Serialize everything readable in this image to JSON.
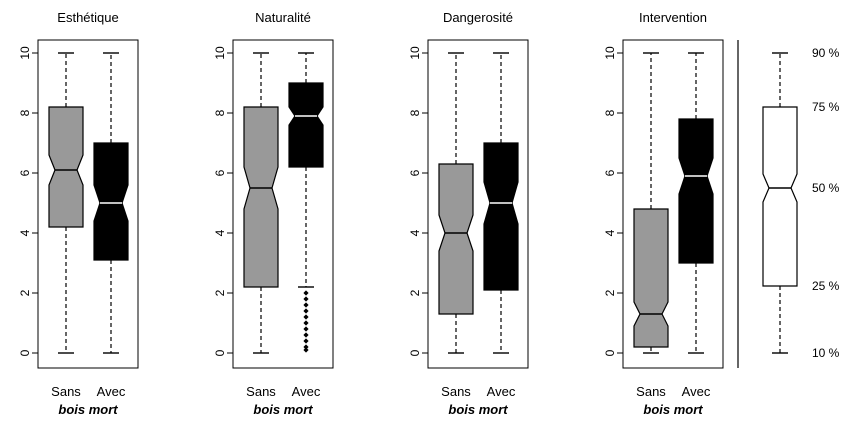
{
  "chart_data": {
    "type": "boxplot",
    "ylim": [
      0,
      10
    ],
    "yticks": [
      0,
      2,
      4,
      6,
      8,
      10
    ],
    "group_labels": [
      "Sans",
      "Avec"
    ],
    "group_sublabel": "bois mort",
    "colors": {
      "Sans": "#999999",
      "Avec": "#000000",
      "reference": "#ffffff"
    },
    "panels": [
      {
        "title": "Esthétique",
        "boxes": [
          {
            "group": "Sans",
            "whisker_low": 0,
            "q1": 4.2,
            "median": 6.1,
            "q3": 8.2,
            "whisker_high": 10,
            "notch_low": 5.6,
            "notch_high": 6.6,
            "outliers": []
          },
          {
            "group": "Avec",
            "whisker_low": 0,
            "q1": 3.1,
            "median": 5.0,
            "q3": 7.0,
            "whisker_high": 10,
            "notch_low": 4.4,
            "notch_high": 5.6,
            "outliers": []
          }
        ]
      },
      {
        "title": "Naturalité",
        "boxes": [
          {
            "group": "Sans",
            "whisker_low": 0,
            "q1": 2.2,
            "median": 5.5,
            "q3": 8.2,
            "whisker_high": 10,
            "notch_low": 4.8,
            "notch_high": 6.2,
            "outliers": []
          },
          {
            "group": "Avec",
            "whisker_low": 2.2,
            "q1": 6.2,
            "median": 7.9,
            "q3": 9.0,
            "whisker_high": 10,
            "notch_low": 7.6,
            "notch_high": 8.2,
            "outliers": [
              0.1,
              0.2,
              0.4,
              0.6,
              0.8,
              1.0,
              1.2,
              1.4,
              1.6,
              1.8,
              2.0
            ]
          }
        ]
      },
      {
        "title": "Dangerosité",
        "boxes": [
          {
            "group": "Sans",
            "whisker_low": 0,
            "q1": 1.3,
            "median": 4.0,
            "q3": 6.3,
            "whisker_high": 10,
            "notch_low": 3.4,
            "notch_high": 4.6,
            "outliers": []
          },
          {
            "group": "Avec",
            "whisker_low": 0,
            "q1": 2.1,
            "median": 5.0,
            "q3": 7.0,
            "whisker_high": 10,
            "notch_low": 4.3,
            "notch_high": 5.7,
            "outliers": []
          }
        ]
      },
      {
        "title": "Intervention",
        "boxes": [
          {
            "group": "Sans",
            "whisker_low": 0,
            "q1": 0.2,
            "median": 1.3,
            "q3": 4.8,
            "whisker_high": 10,
            "notch_low": 0.9,
            "notch_high": 1.7,
            "outliers": []
          },
          {
            "group": "Avec",
            "whisker_low": 0,
            "q1": 3.0,
            "median": 5.9,
            "q3": 7.8,
            "whisker_high": 10,
            "notch_low": 5.3,
            "notch_high": 6.5,
            "outliers": []
          }
        ]
      }
    ],
    "legend": {
      "box": {
        "whisker_low": 10,
        "q1": 25,
        "median": 50,
        "q3": 75,
        "whisker_high": 90
      },
      "labels": [
        "90 %",
        "75 %",
        "50 %",
        "25 %",
        "10 %"
      ]
    }
  }
}
